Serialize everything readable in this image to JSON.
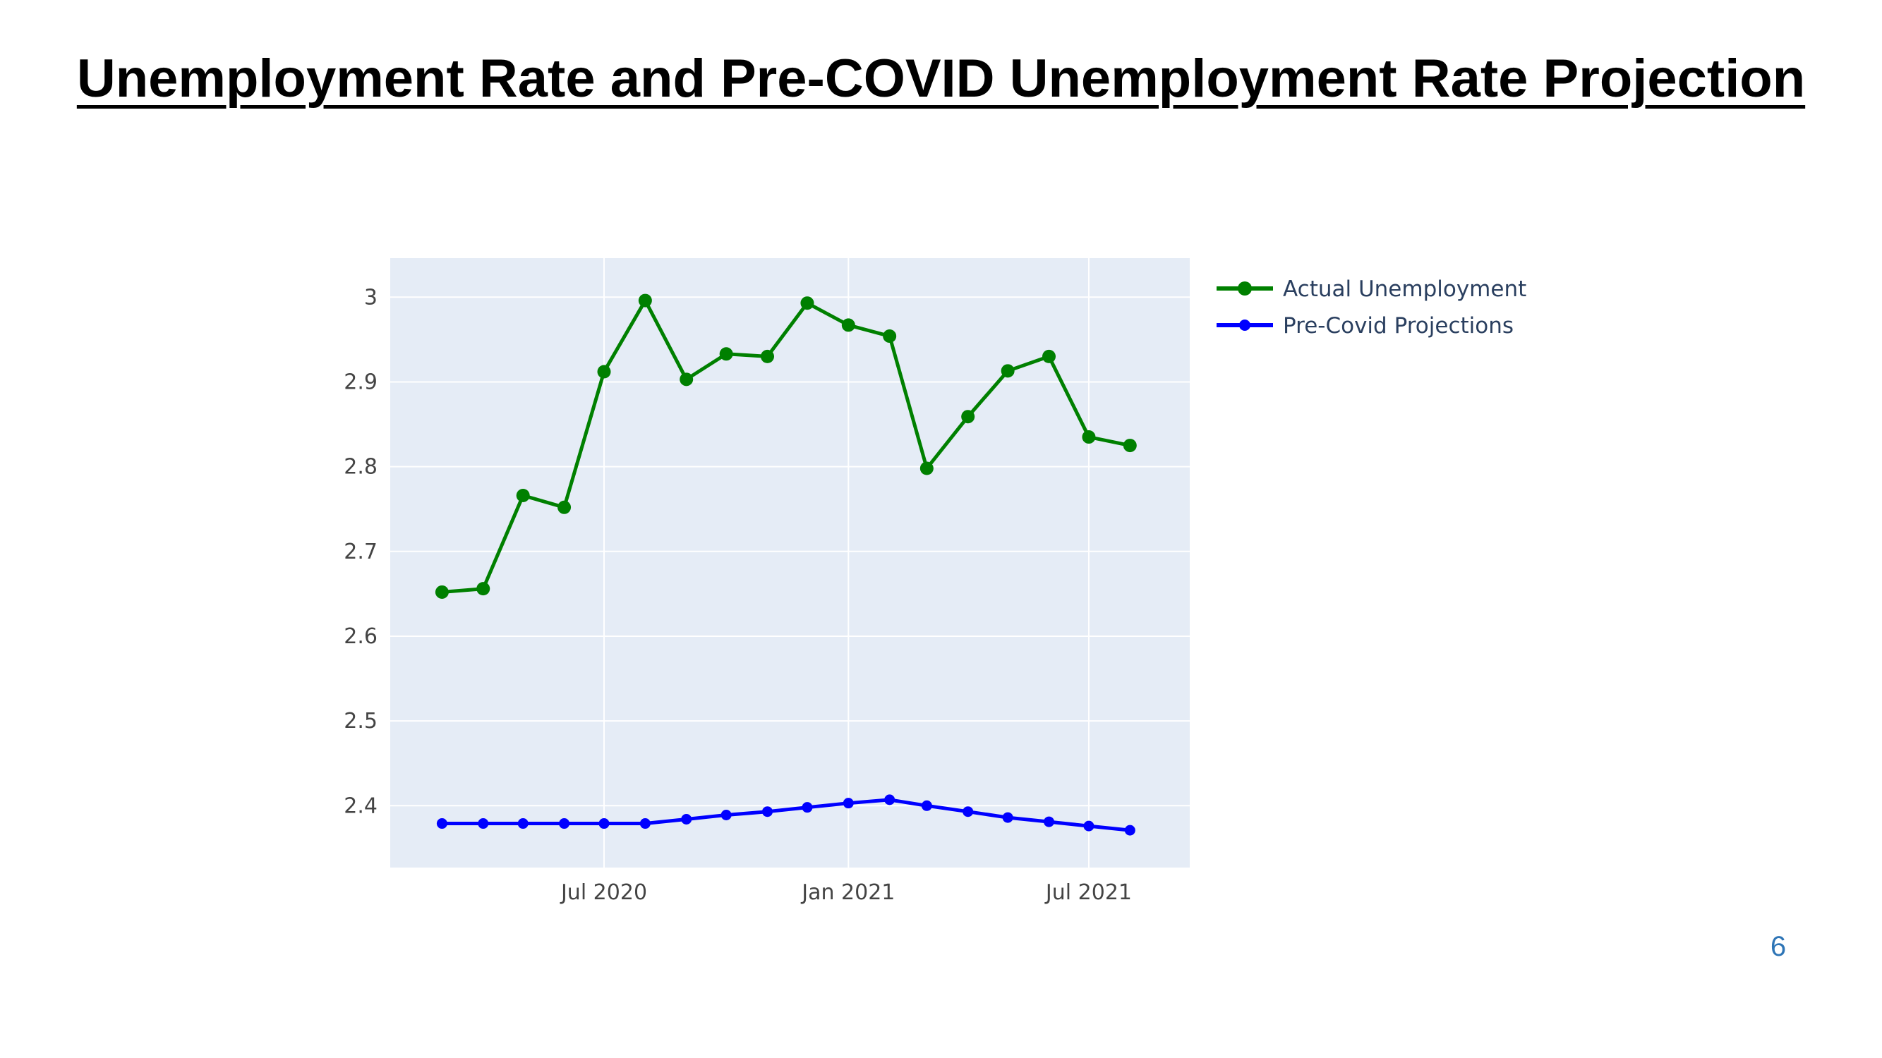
{
  "slide": {
    "title": "Unemployment Rate and Pre-COVID Unemployment Rate Projection",
    "page_number": "6"
  },
  "chart_data": {
    "type": "line",
    "title": "",
    "xlabel": "",
    "ylabel": "",
    "x": [
      "2020-03-01",
      "2020-04-01",
      "2020-05-01",
      "2020-06-01",
      "2020-07-01",
      "2020-08-01",
      "2020-09-01",
      "2020-10-01",
      "2020-11-01",
      "2020-12-01",
      "2021-01-01",
      "2021-02-01",
      "2021-03-01",
      "2021-04-01",
      "2021-05-01",
      "2021-06-01",
      "2021-07-01",
      "2021-08-01"
    ],
    "x_ticks": [
      {
        "date": "2020-07-01",
        "label": "Jul 2020"
      },
      {
        "date": "2021-01-01",
        "label": "Jan 2021"
      },
      {
        "date": "2021-07-01",
        "label": "Jul 2021"
      }
    ],
    "y_ticks": [
      2.4,
      2.5,
      2.6,
      2.7,
      2.8,
      2.9,
      3
    ],
    "y_tick_labels": [
      "2.4",
      "2.5",
      "2.6",
      "2.7",
      "2.8",
      "2.9",
      "3"
    ],
    "xlim": [
      "2020-01-22",
      "2021-09-15"
    ],
    "ylim": [
      2.327,
      3.046
    ],
    "grid": true,
    "plot_background": "#e5ecf6",
    "legend_position": "right",
    "series": [
      {
        "name": "Actual Unemployment",
        "color": "#008000",
        "values": [
          2.652,
          2.656,
          2.766,
          2.752,
          2.912,
          2.996,
          2.903,
          2.933,
          2.93,
          2.993,
          2.967,
          2.954,
          2.798,
          2.859,
          2.913,
          2.93,
          2.835,
          2.825
        ]
      },
      {
        "name": "Pre-Covid Projections",
        "color": "#0000ff",
        "values": [
          2.379,
          2.379,
          2.379,
          2.379,
          2.379,
          2.379,
          2.384,
          2.389,
          2.393,
          2.398,
          2.403,
          2.407,
          2.4,
          2.393,
          2.386,
          2.381,
          2.376,
          2.371
        ]
      }
    ]
  }
}
